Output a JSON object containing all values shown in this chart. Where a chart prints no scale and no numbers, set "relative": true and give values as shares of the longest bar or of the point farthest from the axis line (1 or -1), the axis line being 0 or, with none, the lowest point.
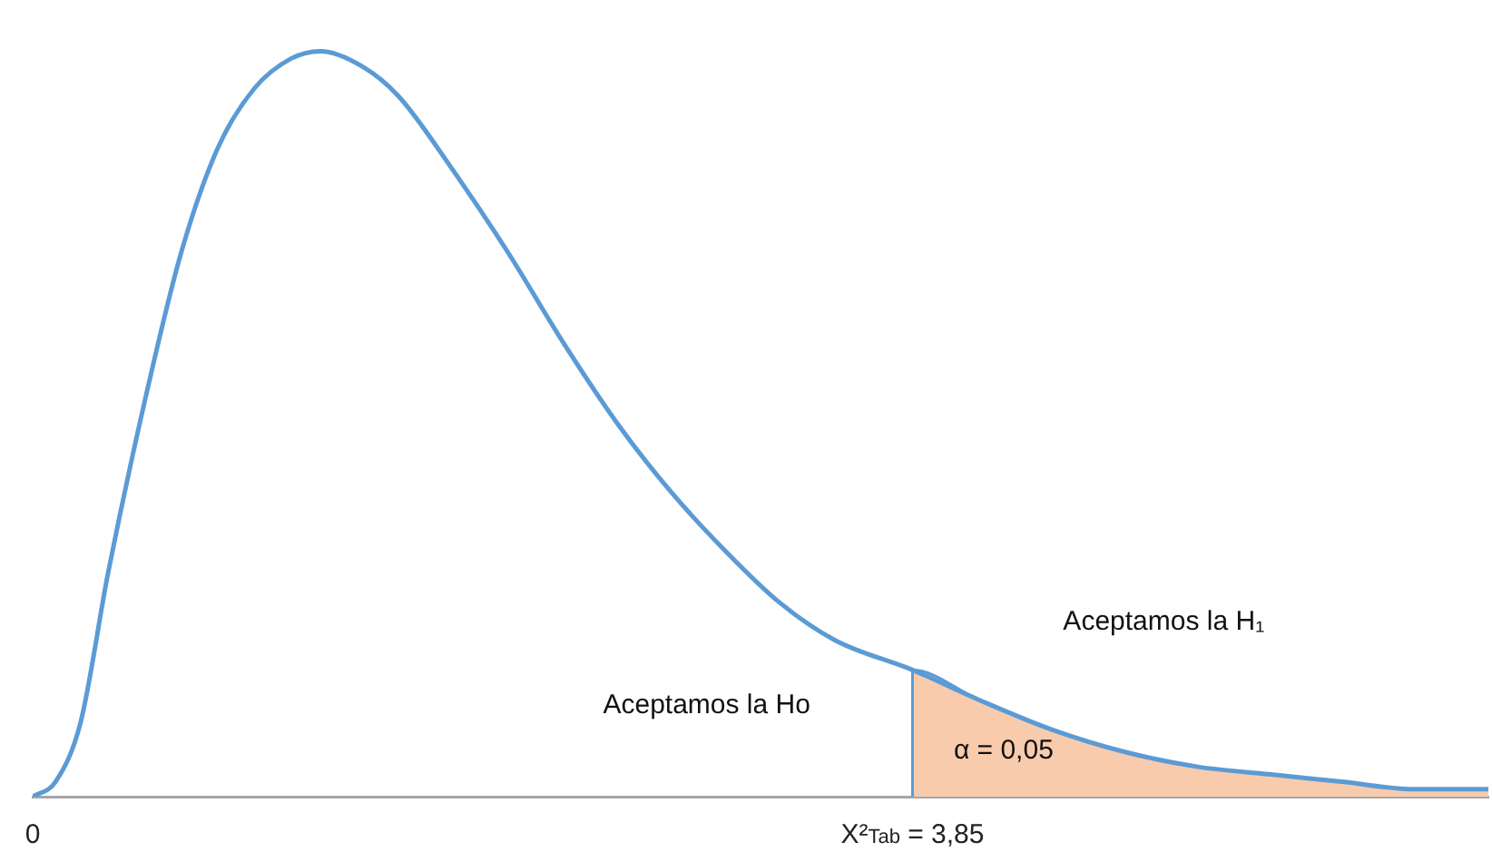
{
  "chart_data": {
    "type": "line",
    "relative": true,
    "xlim": [
      0,
      6.37
    ],
    "xticks": [
      0,
      {
        "value": 3.85,
        "label": "X²$_{Tab}$ = 3,85"
      }
    ],
    "grid": false,
    "legend": false,
    "marker": "none",
    "line_style": "solid",
    "series": [
      {
        "color": "#5b9bd5",
        "x": [
          0,
          0.1,
          0.21,
          0.33,
          0.49,
          0.65,
          0.81,
          0.97,
          1.13,
          1.26,
          1.44,
          1.6,
          1.84,
          2.08,
          2.32,
          2.56,
          2.79,
          3.03,
          3.27,
          3.51,
          3.85,
          4.14,
          4.46,
          4.78,
          5.1,
          5.41,
          5.73,
          6.05,
          6.37
        ],
        "values": [
          0,
          0.02,
          0.1,
          0.3,
          0.53,
          0.73,
          0.87,
          0.95,
          0.99,
          1,
          0.98,
          0.94,
          0.84,
          0.73,
          0.61,
          0.5,
          0.41,
          0.33,
          0.26,
          0.21,
          0.17,
          0.13,
          0.09,
          0.06,
          0.04,
          0.03,
          0.02,
          0.01,
          0.01
        ]
      },
      {
        "type": "area",
        "color": "#f8cbad",
        "x": [
          3.85,
          3.85,
          4.14,
          4.46,
          4.78,
          5.1,
          5.41,
          5.73,
          6.05,
          6.37
        ],
        "values": [
          0,
          0.17,
          0.13,
          0.09,
          0.06,
          0.04,
          0.03,
          0.02,
          0.01,
          0.01
        ]
      }
    ],
    "annotations": [
      "Aceptamos la Ho",
      "Aceptamos la H₁",
      "α = 0,05"
    ]
  }
}
